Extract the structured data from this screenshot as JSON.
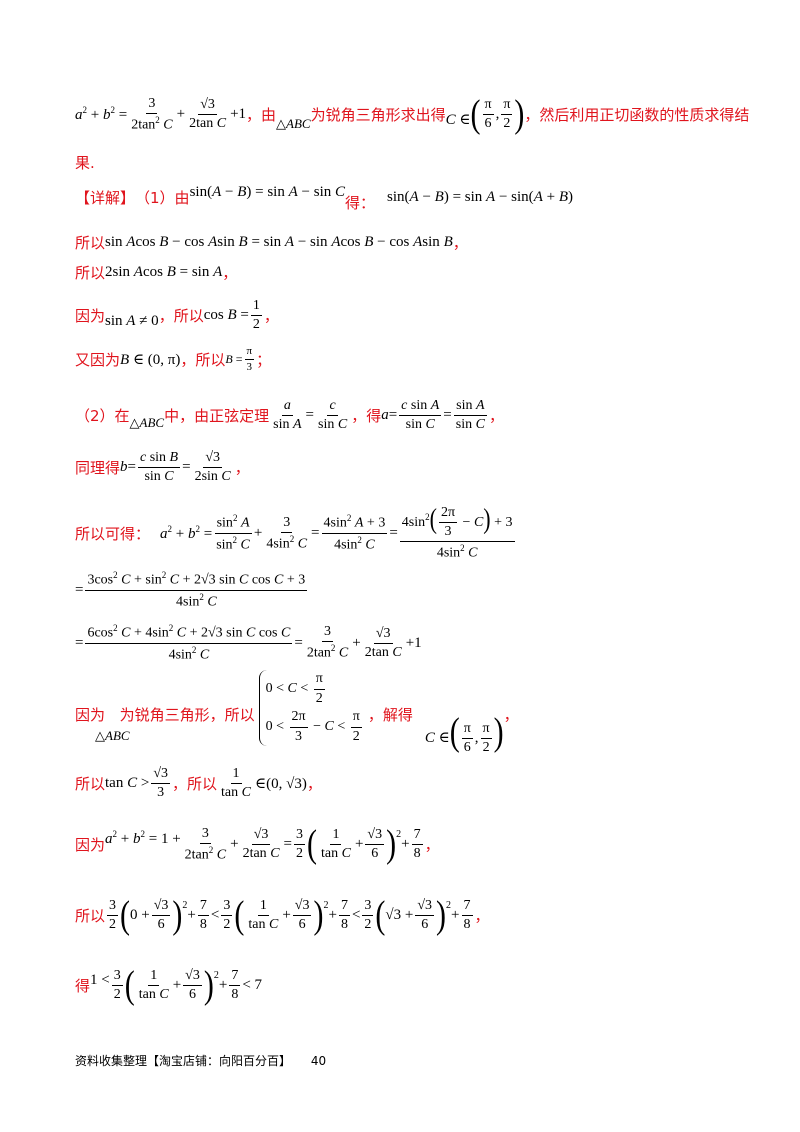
{
  "page": {
    "line1_tail": "，由",
    "line1_mid": "为锐角三角形求出得",
    "line1_end": "，然后利用正切函数的性质求得结",
    "line1_cont": "果.",
    "detail_tag": "【详解】",
    "part1_prefix": "（1）由",
    "part1_de": "得：",
    "so1": "所以",
    "so2": "所以",
    "because1": "因为",
    "so3": "，所以",
    "also": "又因为",
    "so4": "，所以",
    "part2_prefix": "（2）在",
    "part2_mid": "中，由正弦定理",
    "part2_de": "，得",
    "similarly": "同理得",
    "sokede": "所以可得：",
    "because2": "因为",
    "acute": "为锐角三角形，所以",
    "solve": "，解得",
    "so5": "所以",
    "so6": "，所以",
    "because3": "因为",
    "so7": "所以",
    "de": "得",
    "comma": "，",
    "semicolon": "；"
  },
  "footer": {
    "text": "资料收集整理【淘宝店铺：向阳百分百】",
    "page_number": "40"
  }
}
